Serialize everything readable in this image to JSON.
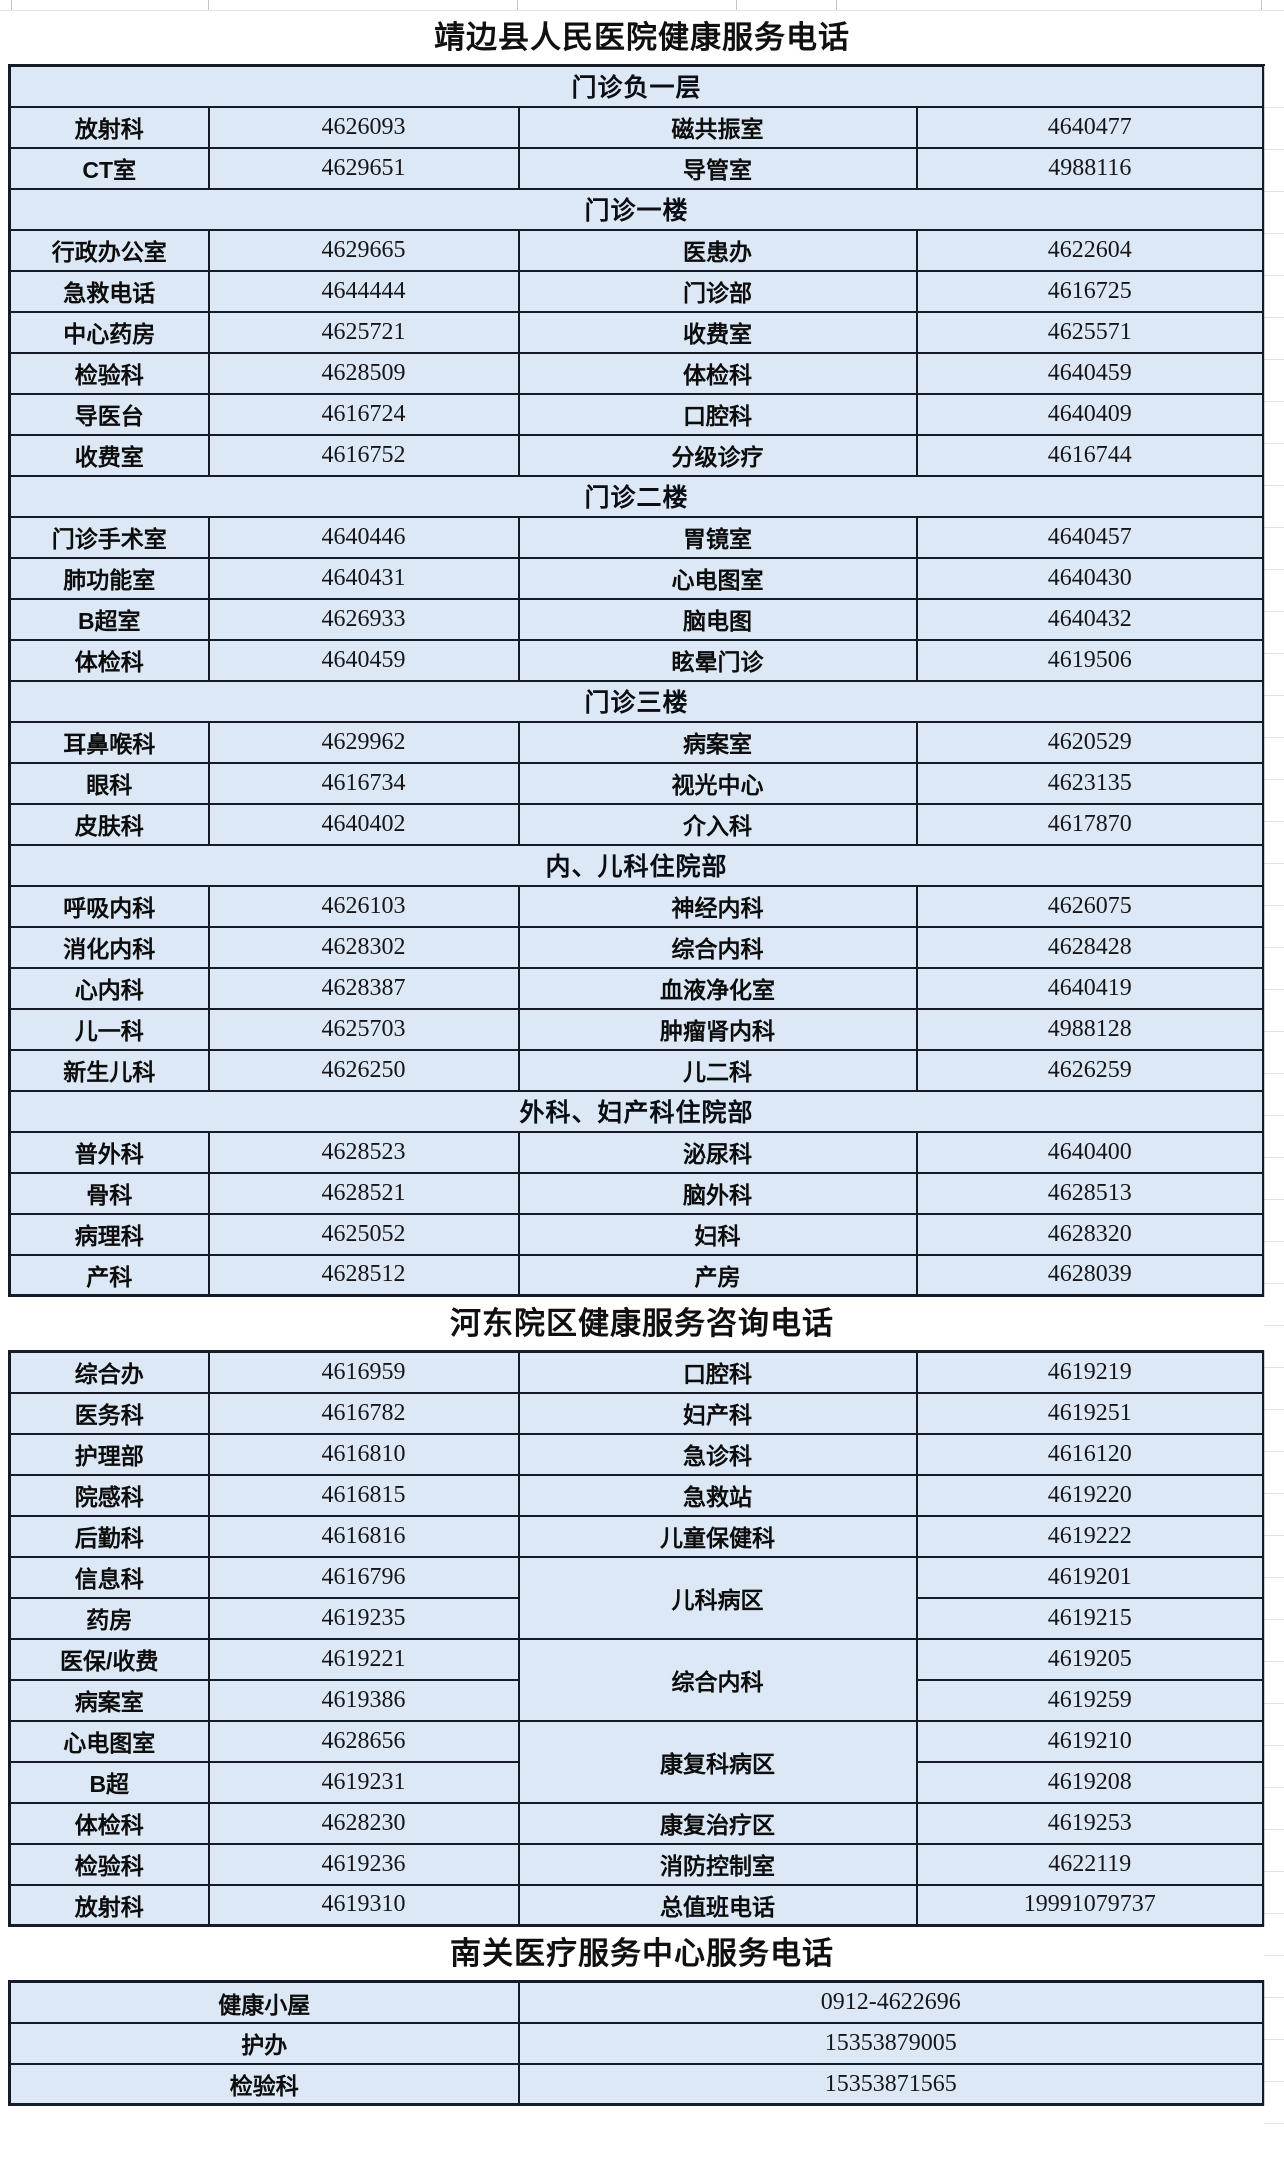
{
  "titles": {
    "main": "靖边县人民医院健康服务电话",
    "hedong": "河东院区健康服务咨询电话",
    "nanguan": "南关医疗服务中心服务电话"
  },
  "colors": {
    "section_header_bg": "#5695d2",
    "row_bg": "#dce8f5",
    "border": "#161b28",
    "title_text": "#101010"
  },
  "main": {
    "sections": [
      {
        "header": "门诊负一层",
        "rows": [
          [
            "放射科",
            "4626093",
            "磁共振室",
            "4640477"
          ],
          [
            "CT室",
            "4629651",
            "导管室",
            "4988116"
          ]
        ]
      },
      {
        "header": "门诊一楼",
        "rows": [
          [
            "行政办公室",
            "4629665",
            "医患办",
            "4622604"
          ],
          [
            "急救电话",
            "4644444",
            "门诊部",
            "4616725"
          ],
          [
            "中心药房",
            "4625721",
            "收费室",
            "4625571"
          ],
          [
            "检验科",
            "4628509",
            "体检科",
            "4640459"
          ],
          [
            "导医台",
            "4616724",
            "口腔科",
            "4640409"
          ],
          [
            "收费室",
            "4616752",
            "分级诊疗",
            "4616744"
          ]
        ]
      },
      {
        "header": "门诊二楼",
        "rows": [
          [
            "门诊手术室",
            "4640446",
            "胃镜室",
            "4640457"
          ],
          [
            "肺功能室",
            "4640431",
            "心电图室",
            "4640430"
          ],
          [
            "B超室",
            "4626933",
            "脑电图",
            "4640432"
          ],
          [
            "体检科",
            "4640459",
            "眩晕门诊",
            "4619506"
          ]
        ]
      },
      {
        "header": "门诊三楼",
        "rows": [
          [
            "耳鼻喉科",
            "4629962",
            "病案室",
            "4620529"
          ],
          [
            "眼科",
            "4616734",
            "视光中心",
            "4623135"
          ],
          [
            "皮肤科",
            "4640402",
            "介入科",
            "4617870"
          ]
        ]
      },
      {
        "header": "内、儿科住院部",
        "rows": [
          [
            "呼吸内科",
            "4626103",
            "神经内科",
            "4626075"
          ],
          [
            "消化内科",
            "4628302",
            "综合内科",
            "4628428"
          ],
          [
            "心内科",
            "4628387",
            "血液净化室",
            "4640419"
          ],
          [
            "儿一科",
            "4625703",
            "肿瘤肾内科",
            "4988128"
          ],
          [
            "新生儿科",
            "4626250",
            "儿二科",
            "4626259"
          ]
        ]
      },
      {
        "header": "外科、妇产科住院部",
        "rows": [
          [
            "普外科",
            "4628523",
            "泌尿科",
            "4640400"
          ],
          [
            "骨科",
            "4628521",
            "脑外科",
            "4628513"
          ],
          [
            "病理科",
            "4625052",
            "妇科",
            "4628320"
          ],
          [
            "产科",
            "4628512",
            "产房",
            "4628039"
          ]
        ]
      }
    ]
  },
  "hedong": {
    "simple_top": [
      [
        "综合办",
        "4616959",
        "口腔科",
        "4619219"
      ],
      [
        "医务科",
        "4616782",
        "妇产科",
        "4619251"
      ],
      [
        "护理部",
        "4616810",
        "急诊科",
        "4616120"
      ],
      [
        "院感科",
        "4616815",
        "急救站",
        "4619220"
      ],
      [
        "后勤科",
        "4616816",
        "儿童保健科",
        "4619222"
      ]
    ],
    "merged_groups": [
      {
        "label": "儿科病区",
        "rows": [
          [
            "信息科",
            "4616796",
            "4619201"
          ],
          [
            "药房",
            "4619235",
            "4619215"
          ]
        ]
      },
      {
        "label": "综合内科",
        "rows": [
          [
            "医保/收费",
            "4619221",
            "4619205"
          ],
          [
            "病案室",
            "4619386",
            "4619259"
          ]
        ]
      },
      {
        "label": "康复科病区",
        "rows": [
          [
            "心电图室",
            "4628656",
            "4619210"
          ],
          [
            "B超",
            "4619231",
            "4619208"
          ]
        ]
      }
    ],
    "simple_bottom": [
      [
        "体检科",
        "4628230",
        "康复治疗区",
        "4619253"
      ],
      [
        "检验科",
        "4619236",
        "消防控制室",
        "4622119"
      ],
      [
        "放射科",
        "4619310",
        "总值班电话",
        "19991079737"
      ]
    ]
  },
  "nanguan": {
    "rows": [
      [
        "健康小屋",
        "0912-4622696"
      ],
      [
        "护办",
        "15353879005"
      ],
      [
        "检验科",
        "15353871565"
      ]
    ]
  }
}
